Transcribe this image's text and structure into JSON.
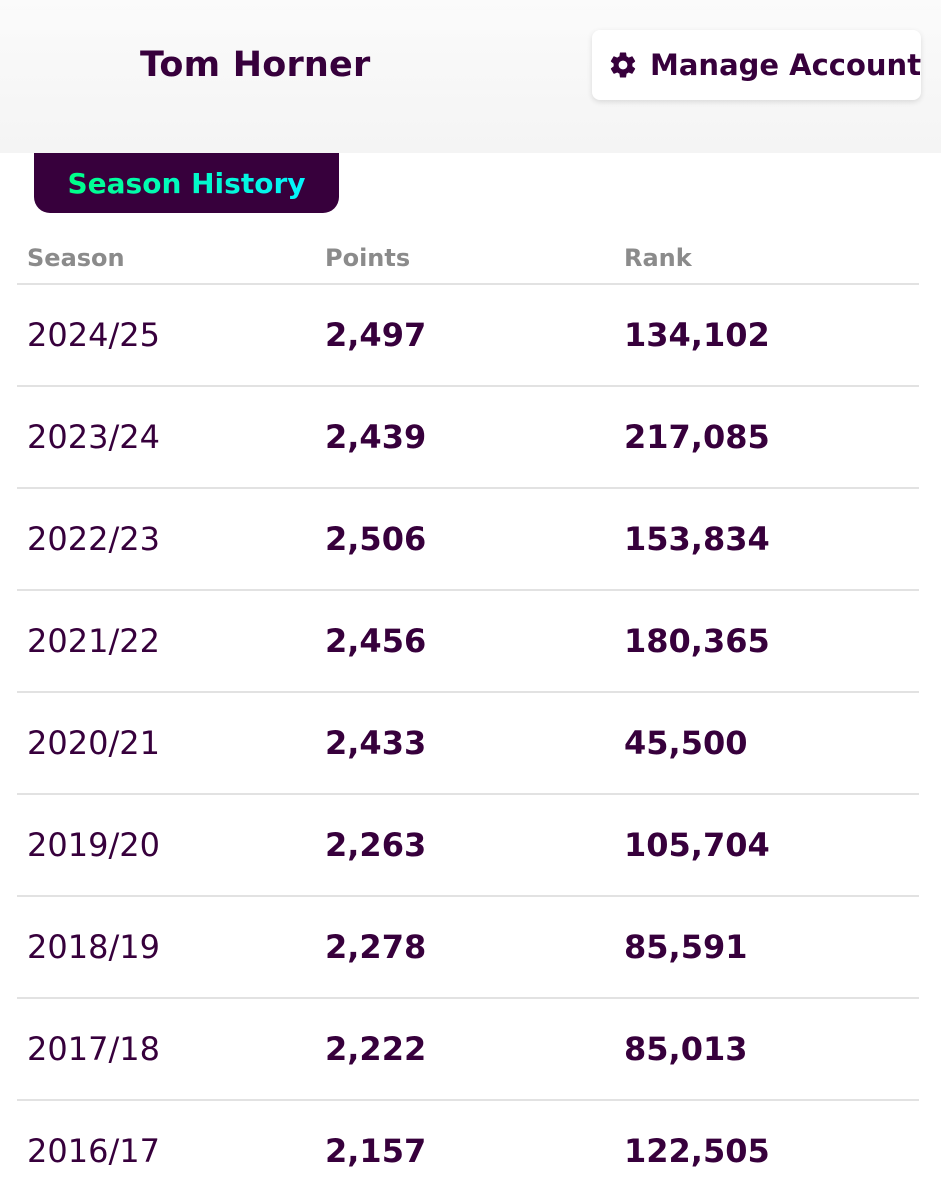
{
  "header": {
    "user_name": "Tom Horner",
    "manage_button_label": "Manage Account",
    "manage_button_icon": "gear-icon"
  },
  "tab": {
    "label": "Season History"
  },
  "table": {
    "columns": [
      "Season",
      "Points",
      "Rank"
    ],
    "rows": [
      {
        "season": "2024/25",
        "points": "2,497",
        "rank": "134,102"
      },
      {
        "season": "2023/24",
        "points": "2,439",
        "rank": "217,085"
      },
      {
        "season": "2022/23",
        "points": "2,506",
        "rank": "153,834"
      },
      {
        "season": "2021/22",
        "points": "2,456",
        "rank": "180,365"
      },
      {
        "season": "2020/21",
        "points": "2,433",
        "rank": "45,500"
      },
      {
        "season": "2019/20",
        "points": "2,263",
        "rank": "105,704"
      },
      {
        "season": "2018/19",
        "points": "2,278",
        "rank": "85,591"
      },
      {
        "season": "2017/18",
        "points": "2,222",
        "rank": "85,013"
      },
      {
        "season": "2016/17",
        "points": "2,157",
        "rank": "122,505"
      }
    ]
  },
  "colors": {
    "brand_purple": "#37003c",
    "tab_gradient_start": "#00ff87",
    "tab_gradient_end": "#04f5ff",
    "header_text_grey": "#8b8b8b",
    "divider": "#e2e2e2"
  }
}
